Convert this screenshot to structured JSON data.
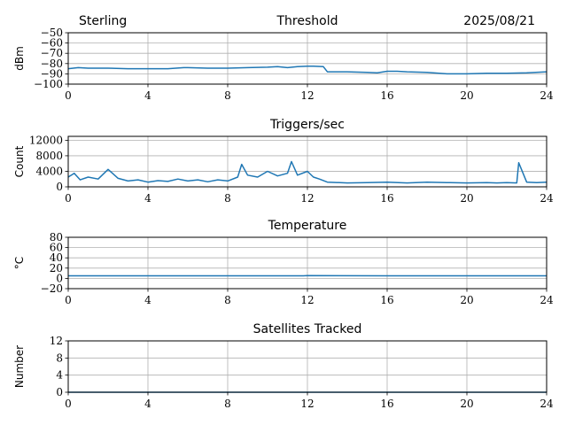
{
  "header": {
    "station": "Sterling",
    "date": "2025/08/21"
  },
  "chart_data": [
    {
      "type": "line",
      "title": "Threshold",
      "xlabel": "",
      "ylabel": "dBm",
      "xlim": [
        0,
        24
      ],
      "ylim": [
        -100,
        -50
      ],
      "xticks": [
        0,
        4,
        8,
        12,
        16,
        20,
        24
      ],
      "yticks": [
        -100,
        -90,
        -80,
        -70,
        -60,
        -50
      ],
      "ytick_labels": [
        "−100",
        "−90",
        "−80",
        "−70",
        "−60",
        "−50"
      ],
      "grid": true,
      "color": "#1f77b4",
      "series": [
        {
          "x": [
            0,
            0.5,
            1,
            2,
            3,
            4,
            5,
            5.8,
            6,
            7,
            8,
            9,
            10,
            10.5,
            11,
            11.5,
            12,
            12.3,
            12.8,
            13,
            14,
            15,
            15.5,
            16,
            16.5,
            17,
            18,
            19,
            20,
            21,
            22,
            23,
            24
          ],
          "y": [
            -85,
            -84,
            -84.5,
            -84.5,
            -85,
            -85,
            -85,
            -84,
            -84,
            -84.5,
            -84.5,
            -84,
            -83.5,
            -83,
            -84,
            -83,
            -82.5,
            -82.5,
            -83,
            -88,
            -88,
            -88.5,
            -89,
            -87.5,
            -87.5,
            -88,
            -88.5,
            -90,
            -90,
            -89.5,
            -89.5,
            -89,
            -88
          ]
        }
      ]
    },
    {
      "type": "line",
      "title": "Triggers/sec",
      "xlabel": "",
      "ylabel": "Count",
      "xlim": [
        0,
        24
      ],
      "ylim": [
        0,
        13000
      ],
      "xticks": [
        0,
        4,
        8,
        12,
        16,
        20,
        24
      ],
      "yticks": [
        0,
        4000,
        8000,
        12000
      ],
      "ytick_labels": [
        "0",
        "4000",
        "8000",
        "12000"
      ],
      "grid": true,
      "color": "#1f77b4",
      "series": [
        {
          "x": [
            0,
            0.3,
            0.6,
            1,
            1.5,
            2,
            2.5,
            3,
            3.5,
            4,
            4.5,
            5,
            5.5,
            6,
            6.5,
            7,
            7.5,
            8,
            8.5,
            8.7,
            9,
            9.5,
            10,
            10.5,
            11,
            11.2,
            11.5,
            12,
            12.3,
            12.6,
            13,
            14,
            15,
            16,
            17,
            18,
            19,
            20,
            21,
            21.5,
            22,
            22.5,
            22.6,
            23,
            23.5,
            24
          ],
          "y": [
            2500,
            3500,
            1800,
            2500,
            2000,
            4500,
            2200,
            1500,
            1800,
            1200,
            1600,
            1400,
            2000,
            1500,
            1800,
            1300,
            1800,
            1500,
            2500,
            5800,
            3000,
            2500,
            4000,
            2800,
            3500,
            6500,
            3000,
            4000,
            2500,
            2000,
            1200,
            1000,
            1100,
            1200,
            1000,
            1200,
            1100,
            1000,
            1100,
            1000,
            1100,
            1000,
            6200,
            1200,
            1100,
            1200
          ]
        }
      ]
    },
    {
      "type": "line",
      "title": "Temperature",
      "xlabel": "",
      "ylabel": "°C",
      "xlim": [
        0,
        24
      ],
      "ylim": [
        -20,
        80
      ],
      "xticks": [
        0,
        4,
        8,
        12,
        16,
        20,
        24
      ],
      "yticks": [
        -20,
        0,
        20,
        40,
        60,
        80
      ],
      "ytick_labels": [
        "−20",
        "0",
        "20",
        "40",
        "60",
        "80"
      ],
      "grid": true,
      "color": "#1f77b4",
      "series": [
        {
          "x": [
            0,
            4,
            8,
            11.8,
            12,
            16,
            20,
            24
          ],
          "y": [
            5,
            5,
            5,
            5,
            5.5,
            5,
            5,
            5
          ]
        }
      ]
    },
    {
      "type": "line",
      "title": "Satellites Tracked",
      "xlabel": "",
      "ylabel": "Number",
      "xlim": [
        0,
        24
      ],
      "ylim": [
        0,
        12
      ],
      "xticks": [
        0,
        4,
        8,
        12,
        16,
        20,
        24
      ],
      "yticks": [
        0,
        4,
        8,
        12
      ],
      "ytick_labels": [
        "0",
        "4",
        "8",
        "12"
      ],
      "grid": true,
      "color": "#1f77b4",
      "series": [
        {
          "x": [
            0,
            24
          ],
          "y": [
            0,
            0
          ]
        }
      ]
    }
  ]
}
